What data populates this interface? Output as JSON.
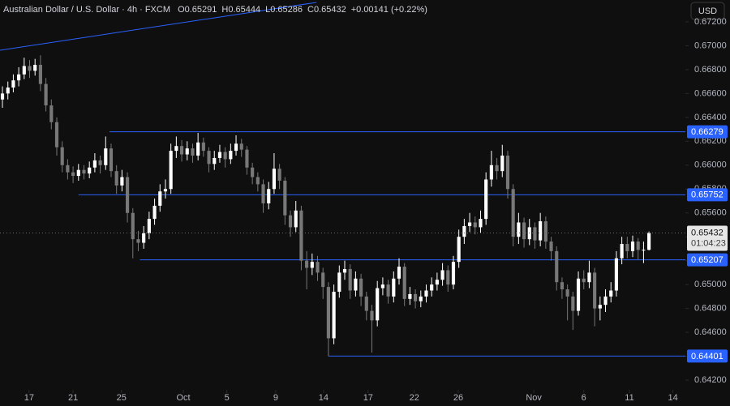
{
  "chart_data": {
    "type": "candlestick",
    "title": "Australian Dollar / U.S. Dollar · 4h · FXCM",
    "ohlc_header": [
      {
        "label": "O",
        "value": 0.65291
      },
      {
        "label": "H",
        "value": 0.65444
      },
      {
        "label": "L",
        "value": 0.65286
      },
      {
        "label": "C",
        "value": 0.65432
      }
    ],
    "change_label": "+0.00141 (+0.22%)",
    "currency_button": "USD",
    "up_color": "#ffffff",
    "down_color": "#787878",
    "level_color": "#2962ff",
    "xlim": [
      -0.45,
      125.7
    ],
    "xticks": [
      {
        "value": 4.9,
        "label": "17"
      },
      {
        "value": 13,
        "label": "21"
      },
      {
        "value": 21.9,
        "label": "25"
      },
      {
        "value": 33.3,
        "label": "Oct"
      },
      {
        "value": 41.3,
        "label": "5"
      },
      {
        "value": 50.3,
        "label": "9"
      },
      {
        "value": 59.1,
        "label": "14"
      },
      {
        "value": 67.3,
        "label": "17"
      },
      {
        "value": 75.8,
        "label": "22"
      },
      {
        "value": 83.9,
        "label": "26"
      },
      {
        "value": 97.8,
        "label": "Nov"
      },
      {
        "value": 107,
        "label": "6"
      },
      {
        "value": 115.4,
        "label": "11"
      },
      {
        "value": 123.4,
        "label": "14"
      }
    ],
    "ylim": [
      0.63983,
      0.67383
    ],
    "yticks": [
      {
        "value": 0.642,
        "label": "0.64200"
      },
      {
        "value": 0.644,
        "label": "0.64400"
      },
      {
        "value": 0.646,
        "label": "0.64600"
      },
      {
        "value": 0.648,
        "label": "0.64800"
      },
      {
        "value": 0.65,
        "label": "0.65000"
      },
      {
        "value": 0.652,
        "label": "0.65200"
      },
      {
        "value": 0.654,
        "label": "0.65400"
      },
      {
        "value": 0.656,
        "label": "0.65600"
      },
      {
        "value": 0.658,
        "label": "0.65800"
      },
      {
        "value": 0.66,
        "label": "0.66000"
      },
      {
        "value": 0.662,
        "label": "0.66200"
      },
      {
        "value": 0.664,
        "label": "0.66400"
      },
      {
        "value": 0.666,
        "label": "0.66600"
      },
      {
        "value": 0.668,
        "label": "0.66800"
      },
      {
        "value": 0.67,
        "label": "0.67000"
      },
      {
        "value": 0.672,
        "label": "0.67200"
      }
    ],
    "open": [
      0.6655,
      0.666,
      0.6665,
      0.6671,
      0.6676,
      0.6683,
      0.6679,
      0.6684,
      0.6668,
      0.665,
      0.6636,
      0.6615,
      0.66,
      0.6594,
      0.6591,
      0.6596,
      0.6593,
      0.6598,
      0.6604,
      0.66,
      0.6614,
      0.6595,
      0.6583,
      0.659,
      0.656,
      0.6538,
      0.6535,
      0.6543,
      0.6555,
      0.6566,
      0.6578,
      0.658,
      0.6612,
      0.6616,
      0.6609,
      0.6614,
      0.6608,
      0.6619,
      0.6612,
      0.6601,
      0.6606,
      0.6611,
      0.6605,
      0.6612,
      0.6618,
      0.6613,
      0.6598,
      0.659,
      0.6584,
      0.6568,
      0.658,
      0.6597,
      0.6587,
      0.6558,
      0.6548,
      0.6562,
      0.652,
      0.6514,
      0.6519,
      0.651,
      0.6498,
      0.6455,
      0.6494,
      0.651,
      0.6513,
      0.6495,
      0.6505,
      0.649,
      0.6478,
      0.647,
      0.6497,
      0.65,
      0.649,
      0.6505,
      0.6515,
      0.6488,
      0.6492,
      0.6486,
      0.649,
      0.6495,
      0.65,
      0.6504,
      0.6512,
      0.65,
      0.6519,
      0.654,
      0.6549,
      0.6552,
      0.6548,
      0.6555,
      0.6588,
      0.66,
      0.6595,
      0.6608,
      0.658,
      0.654,
      0.6552,
      0.6538,
      0.6548,
      0.6537,
      0.6553,
      0.6536,
      0.6528,
      0.6502,
      0.6496,
      0.649,
      0.6478,
      0.6505,
      0.6502,
      0.651,
      0.648,
      0.6483,
      0.649,
      0.6495,
      0.6522,
      0.6534,
      0.6528,
      0.6536,
      0.6529,
      0.65291
    ],
    "high": [
      0.6666,
      0.667,
      0.6676,
      0.6682,
      0.669,
      0.6688,
      0.6689,
      0.6692,
      0.6673,
      0.6655,
      0.664,
      0.662,
      0.6605,
      0.6599,
      0.6601,
      0.66,
      0.6603,
      0.661,
      0.6608,
      0.6624,
      0.6618,
      0.66,
      0.6596,
      0.6594,
      0.6564,
      0.6545,
      0.6549,
      0.6561,
      0.6572,
      0.6584,
      0.6588,
      0.6618,
      0.6624,
      0.6621,
      0.662,
      0.6618,
      0.6627,
      0.6623,
      0.6615,
      0.6612,
      0.6617,
      0.6615,
      0.6618,
      0.6625,
      0.6622,
      0.6616,
      0.6602,
      0.6594,
      0.6588,
      0.6586,
      0.661,
      0.6601,
      0.659,
      0.6562,
      0.657,
      0.6566,
      0.6528,
      0.6526,
      0.6524,
      0.6514,
      0.6502,
      0.65,
      0.6516,
      0.652,
      0.6517,
      0.6511,
      0.6509,
      0.6494,
      0.6483,
      0.6503,
      0.6506,
      0.6504,
      0.6511,
      0.6522,
      0.6518,
      0.6498,
      0.6496,
      0.6495,
      0.65,
      0.6506,
      0.651,
      0.6518,
      0.6516,
      0.6524,
      0.6546,
      0.6555,
      0.656,
      0.6557,
      0.6562,
      0.6594,
      0.6612,
      0.6606,
      0.6617,
      0.6612,
      0.6584,
      0.656,
      0.6556,
      0.6555,
      0.6552,
      0.656,
      0.6557,
      0.654,
      0.6532,
      0.6506,
      0.65,
      0.6494,
      0.6511,
      0.6512,
      0.652,
      0.6514,
      0.649,
      0.6496,
      0.6502,
      0.6528,
      0.654,
      0.654,
      0.6541,
      0.6539,
      0.6536,
      0.65444
    ],
    "low": [
      0.6648,
      0.6655,
      0.6661,
      0.6666,
      0.6672,
      0.6673,
      0.6675,
      0.6662,
      0.6645,
      0.663,
      0.6608,
      0.6594,
      0.6588,
      0.6585,
      0.6587,
      0.6588,
      0.6589,
      0.6594,
      0.6593,
      0.6596,
      0.659,
      0.6576,
      0.6578,
      0.6552,
      0.6522,
      0.6528,
      0.653,
      0.6538,
      0.655,
      0.6561,
      0.6572,
      0.6576,
      0.6606,
      0.6603,
      0.6604,
      0.6602,
      0.6604,
      0.6607,
      0.6594,
      0.6596,
      0.6602,
      0.6598,
      0.6601,
      0.6608,
      0.6607,
      0.6592,
      0.6584,
      0.6578,
      0.656,
      0.6563,
      0.6576,
      0.658,
      0.655,
      0.654,
      0.6544,
      0.6512,
      0.6496,
      0.6508,
      0.6503,
      0.6488,
      0.644,
      0.645,
      0.6489,
      0.6504,
      0.6488,
      0.649,
      0.6482,
      0.647,
      0.6443,
      0.6465,
      0.6491,
      0.6484,
      0.6485,
      0.65,
      0.6482,
      0.6483,
      0.648,
      0.6481,
      0.6485,
      0.649,
      0.6495,
      0.6499,
      0.6494,
      0.6496,
      0.6514,
      0.6534,
      0.6544,
      0.6542,
      0.6543,
      0.655,
      0.6582,
      0.6588,
      0.659,
      0.6572,
      0.6532,
      0.6534,
      0.6531,
      0.6533,
      0.653,
      0.6532,
      0.653,
      0.652,
      0.6495,
      0.6488,
      0.647,
      0.6462,
      0.6474,
      0.6496,
      0.6497,
      0.6465,
      0.647,
      0.6477,
      0.6485,
      0.649,
      0.6517,
      0.6522,
      0.6523,
      0.6521,
      0.6518,
      0.65286
    ],
    "close": [
      0.666,
      0.6665,
      0.6671,
      0.6676,
      0.6683,
      0.6679,
      0.6684,
      0.6668,
      0.665,
      0.6636,
      0.6615,
      0.66,
      0.6594,
      0.6591,
      0.6596,
      0.6593,
      0.6598,
      0.6604,
      0.66,
      0.6614,
      0.6595,
      0.6583,
      0.659,
      0.656,
      0.6538,
      0.6535,
      0.6543,
      0.6555,
      0.6566,
      0.6578,
      0.658,
      0.6612,
      0.6616,
      0.6609,
      0.6614,
      0.6608,
      0.6619,
      0.6612,
      0.6601,
      0.6606,
      0.6611,
      0.6605,
      0.6612,
      0.6618,
      0.6613,
      0.6598,
      0.659,
      0.6584,
      0.6568,
      0.658,
      0.6597,
      0.6587,
      0.6558,
      0.6548,
      0.6562,
      0.652,
      0.6514,
      0.6519,
      0.651,
      0.6498,
      0.6455,
      0.6494,
      0.651,
      0.6513,
      0.6495,
      0.6505,
      0.649,
      0.6478,
      0.647,
      0.6497,
      0.65,
      0.649,
      0.6505,
      0.6515,
      0.6488,
      0.6492,
      0.6486,
      0.649,
      0.6495,
      0.65,
      0.6504,
      0.6512,
      0.65,
      0.6519,
      0.654,
      0.6549,
      0.6552,
      0.6548,
      0.6555,
      0.6588,
      0.66,
      0.6595,
      0.6608,
      0.658,
      0.654,
      0.6552,
      0.6538,
      0.6548,
      0.6537,
      0.6553,
      0.6536,
      0.6528,
      0.6502,
      0.6496,
      0.649,
      0.6478,
      0.6505,
      0.6502,
      0.651,
      0.648,
      0.6483,
      0.649,
      0.6495,
      0.6522,
      0.6534,
      0.6528,
      0.6536,
      0.6529,
      0.65291,
      0.65432
    ],
    "levels": [
      {
        "value": 0.66279,
        "x_start": 19.7
      },
      {
        "value": 0.65752,
        "x_start": 14
      },
      {
        "value": 0.65207,
        "x_start": 25.3
      },
      {
        "value": 0.64401,
        "x_start": 60
      }
    ],
    "trendline": {
      "x": [
        -0.45,
        57.8
      ],
      "y": [
        0.66962,
        0.67363
      ]
    },
    "last_price": 0.65432,
    "countdown": "01:04:23"
  }
}
